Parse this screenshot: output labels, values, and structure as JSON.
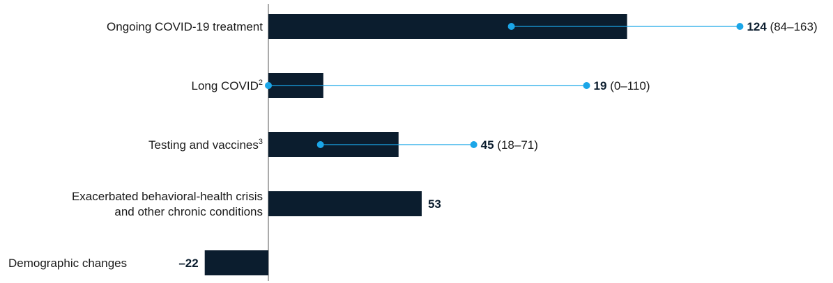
{
  "chart_data": {
    "type": "bar",
    "orientation": "horizontal",
    "categories": [
      {
        "label": "Ongoing COVID-19 treatment",
        "superscript": ""
      },
      {
        "label": "Long COVID",
        "superscript": "2"
      },
      {
        "label": "Testing and vaccines",
        "superscript": "3"
      },
      {
        "label_lines": [
          "Exacerbated behavioral-health crisis",
          "and other chronic conditions"
        ],
        "superscript": ""
      },
      {
        "label": "Demographic changes",
        "superscript": ""
      }
    ],
    "values": [
      124,
      19,
      45,
      53,
      -22
    ],
    "value_labels": [
      "124",
      "19",
      "45",
      "53",
      "–22"
    ],
    "ranges": [
      [
        84,
        163
      ],
      [
        0,
        110
      ],
      [
        18,
        71
      ],
      null,
      null
    ],
    "range_labels": [
      "84–163",
      "0–110",
      "18–71",
      null,
      null
    ],
    "xlim": [
      -22,
      163
    ],
    "grid": false,
    "colors": {
      "bar": "#0b1d2e",
      "range_line": "#1ba6e8",
      "range_dot": "#1ba6e8",
      "axis": "#555555"
    }
  }
}
